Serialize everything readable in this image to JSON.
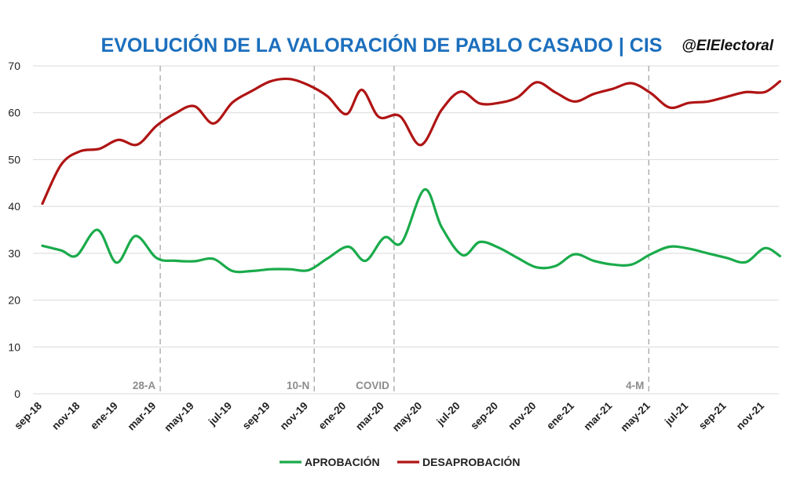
{
  "header": {
    "title": "EVOLUCIÓN DE LA VALORACIÓN DE PABLO CASADO | CIS",
    "brand": "@ElElectoral"
  },
  "colors": {
    "title": "#1c6fbd",
    "aprobacion": "#1aab4b",
    "desaprobacion": "#b01414",
    "grid": "#d9d9d9",
    "event_line": "#a6a6a6",
    "event_label": "#8c8c8c"
  },
  "chart_data": {
    "type": "line",
    "title": "EVOLUCIÓN DE LA VALORACIÓN DE PABLO CASADO | CIS",
    "xlabel": "",
    "ylabel": "",
    "ylim": [
      0,
      70
    ],
    "yticks": [
      0,
      10,
      20,
      30,
      40,
      50,
      60,
      70
    ],
    "grid": true,
    "legend_position": "bottom",
    "x_tick_labels": [
      "sep-18",
      "nov-18",
      "ene-19",
      "mar-19",
      "may-19",
      "jul-19",
      "sep-19",
      "nov-19",
      "ene-20",
      "mar-20",
      "may-20",
      "jul-20",
      "sep-20",
      "nov-20",
      "ene-21",
      "mar-21",
      "may-21",
      "jul-21",
      "sep-21",
      "nov-21"
    ],
    "events": [
      {
        "label": "28-A",
        "x": 6.2
      },
      {
        "label": "10-N",
        "x": 14.3
      },
      {
        "label": "COVID",
        "x": 18.5
      },
      {
        "label": "4-M",
        "x": 31.9
      }
    ],
    "series": [
      {
        "name": "APROBACIÓN",
        "color": "#1aab4b",
        "points": [
          [
            0,
            31.6
          ],
          [
            1,
            30.6
          ],
          [
            1.8,
            29.5
          ],
          [
            2.9,
            35.0
          ],
          [
            3.9,
            28.0
          ],
          [
            4.9,
            33.7
          ],
          [
            6.0,
            29.0
          ],
          [
            7.0,
            28.4
          ],
          [
            8.0,
            28.3
          ],
          [
            9.0,
            28.8
          ],
          [
            10.0,
            26.2
          ],
          [
            11.0,
            26.2
          ],
          [
            12.0,
            26.6
          ],
          [
            13.0,
            26.6
          ],
          [
            14.0,
            26.4
          ],
          [
            15.0,
            28.9
          ],
          [
            16.1,
            31.4
          ],
          [
            17.0,
            28.4
          ],
          [
            18.0,
            33.4
          ],
          [
            18.9,
            32.3
          ],
          [
            20.1,
            43.6
          ],
          [
            21.0,
            35.6
          ],
          [
            22.1,
            29.6
          ],
          [
            23.0,
            32.4
          ],
          [
            24.0,
            31.2
          ],
          [
            25.0,
            29.0
          ],
          [
            26.0,
            27.0
          ],
          [
            27.0,
            27.3
          ],
          [
            28.0,
            29.8
          ],
          [
            29.0,
            28.4
          ],
          [
            30.0,
            27.6
          ],
          [
            31.0,
            27.6
          ],
          [
            32.0,
            29.8
          ],
          [
            33.0,
            31.4
          ],
          [
            34.0,
            31.0
          ],
          [
            35.0,
            30.0
          ],
          [
            36.0,
            29.0
          ],
          [
            37.0,
            28.1
          ],
          [
            38.0,
            31.1
          ],
          [
            38.8,
            29.4
          ]
        ]
      },
      {
        "name": "DESAPROBACIÓN",
        "color": "#b01414",
        "points": [
          [
            0,
            40.6
          ],
          [
            1,
            49.0
          ],
          [
            2.0,
            51.8
          ],
          [
            3.0,
            52.3
          ],
          [
            4.0,
            54.2
          ],
          [
            5.0,
            53.2
          ],
          [
            6.0,
            57.2
          ],
          [
            7.0,
            59.9
          ],
          [
            8.0,
            61.4
          ],
          [
            9.0,
            57.7
          ],
          [
            10.0,
            62.2
          ],
          [
            11.0,
            64.6
          ],
          [
            12.0,
            66.7
          ],
          [
            13.0,
            67.2
          ],
          [
            14.0,
            65.9
          ],
          [
            15.0,
            63.5
          ],
          [
            16.0,
            59.7
          ],
          [
            16.8,
            64.9
          ],
          [
            17.7,
            59.1
          ],
          [
            18.8,
            59.3
          ],
          [
            19.9,
            53.1
          ],
          [
            21.0,
            60.6
          ],
          [
            22.0,
            64.5
          ],
          [
            23.0,
            62.0
          ],
          [
            24.0,
            62.1
          ],
          [
            25.0,
            63.3
          ],
          [
            26.0,
            66.5
          ],
          [
            27.0,
            64.3
          ],
          [
            28.0,
            62.4
          ],
          [
            29.0,
            64.0
          ],
          [
            30.0,
            65.1
          ],
          [
            31.0,
            66.3
          ],
          [
            32.0,
            64.2
          ],
          [
            33.0,
            61.1
          ],
          [
            34.0,
            62.1
          ],
          [
            35.0,
            62.4
          ],
          [
            36.0,
            63.4
          ],
          [
            37.0,
            64.4
          ],
          [
            38.0,
            64.4
          ],
          [
            38.8,
            66.7
          ]
        ]
      }
    ]
  }
}
